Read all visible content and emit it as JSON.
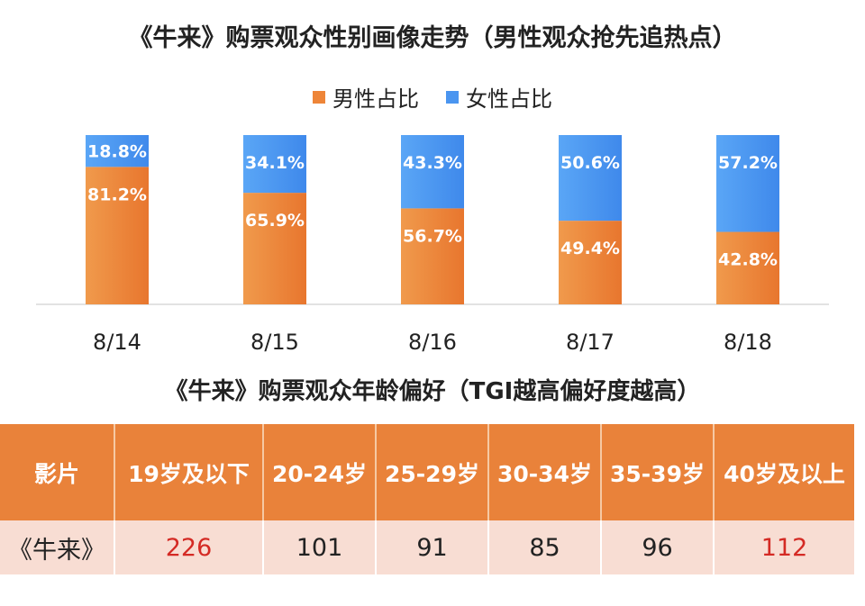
{
  "chart_title": "《牛来》购票观众性别画像走势（男性观众抢先追热点）",
  "legend": [
    {
      "label": "男性占比",
      "color": "#ee8538"
    },
    {
      "label": "女性占比",
      "color": "#4a95f0"
    }
  ],
  "chart_data": {
    "type": "bar",
    "stacked": true,
    "percent": true,
    "categories": [
      "8/14",
      "8/15",
      "8/16",
      "8/17",
      "8/18"
    ],
    "series": [
      {
        "name": "男性占比",
        "values": [
          81.2,
          65.9,
          56.7,
          49.4,
          42.8
        ],
        "labels": [
          "81.2%",
          "65.9%",
          "56.7%",
          "49.4%",
          "42.8%"
        ],
        "color": "#ee8538"
      },
      {
        "name": "女性占比",
        "values": [
          18.8,
          34.1,
          43.3,
          50.6,
          57.2
        ],
        "labels": [
          "18.8%",
          "34.1%",
          "43.3%",
          "50.6%",
          "57.2%"
        ],
        "color": "#4a95f0"
      }
    ],
    "ylim": [
      0,
      100
    ]
  },
  "table": {
    "title": "《牛来》购票观众年龄偏好（TGI越高偏好度越高）",
    "headers": [
      "影片",
      "19岁及以下",
      "20-24岁",
      "25-29岁",
      "30-34岁",
      "35-39岁",
      "40岁及以上"
    ],
    "row": [
      "《牛来》",
      "226",
      "101",
      "91",
      "85",
      "96",
      "112"
    ],
    "highlight_color": "#d42a24"
  }
}
